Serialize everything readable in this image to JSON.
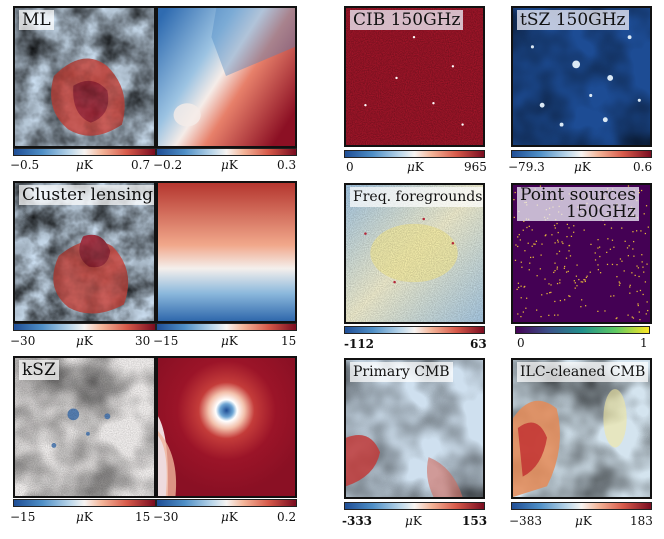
{
  "panels": [
    {
      "id": "ml",
      "title": "ML"
    },
    {
      "id": "ml-dipole",
      "title": ""
    },
    {
      "id": "cib",
      "title": "CIB 150GHz"
    },
    {
      "id": "tsz",
      "title": "tSZ 150GHz"
    },
    {
      "id": "cluster-lensing",
      "title": "Cluster lensing"
    },
    {
      "id": "lensing-dipole",
      "title": ""
    },
    {
      "id": "freq-foregrounds",
      "title": "Freq. foregrounds"
    },
    {
      "id": "point-sources",
      "title_line1": "Point sources",
      "title_line2": "150GHz"
    },
    {
      "id": "ksz",
      "title": "kSZ"
    },
    {
      "id": "ksz-ring",
      "title": ""
    },
    {
      "id": "primary-cmb",
      "title": "Primary CMB"
    },
    {
      "id": "ilc-cmb",
      "title": "ILC-cleaned CMB"
    }
  ],
  "colorbars": [
    {
      "id": "ml",
      "min": "−0.5",
      "max": "0.7",
      "unit_mu": "μ",
      "unit": "K",
      "cmap": "RdBu_r"
    },
    {
      "id": "ml-dipole",
      "min": "−0.2",
      "max": "0.3",
      "unit_mu": "μ",
      "unit": "K",
      "cmap": "RdBu_r"
    },
    {
      "id": "cib",
      "min": "0",
      "max": "965",
      "unit_mu": "μ",
      "unit": "K",
      "cmap": "RdBu_r"
    },
    {
      "id": "tsz",
      "min": "−79.3",
      "max": "0.6",
      "unit_mu": "μ",
      "unit": "K",
      "cmap": "RdBu_r"
    },
    {
      "id": "lensing",
      "min": "−30",
      "max": "30",
      "unit_mu": "μ",
      "unit": "K",
      "cmap": "RdBu_r"
    },
    {
      "id": "lensing-dipole",
      "min": "−15",
      "max": "15",
      "unit_mu": "μ",
      "unit": "K",
      "cmap": "RdBu_r"
    },
    {
      "id": "freq",
      "min": "-112",
      "max": "63",
      "unit_mu": "",
      "unit": "",
      "cmap": "RdBu_r"
    },
    {
      "id": "ps",
      "min": "0",
      "max": "1",
      "unit_mu": "",
      "unit": "",
      "cmap": "viridis"
    },
    {
      "id": "ksz",
      "min": "−15",
      "max": "15",
      "unit_mu": "μ",
      "unit": "K",
      "cmap": "RdBu_r"
    },
    {
      "id": "ksz-ring",
      "min": "−30",
      "max": "0.2",
      "unit_mu": "μ",
      "unit": "K",
      "cmap": "RdBu_r"
    },
    {
      "id": "primary",
      "min": "-333",
      "max": "153",
      "unit_mu": "μ",
      "unit": "K",
      "cmap": "RdBu_r"
    },
    {
      "id": "ilc",
      "min": "−383",
      "max": "183",
      "unit_mu": "μ",
      "unit": "K",
      "cmap": "RdBu_r"
    }
  ],
  "colors": {
    "red": "#a1172b",
    "blue": "#2f6bb0",
    "white": "#f7f4f2",
    "viridis_bg": "#440154",
    "point": "#e6b93a"
  }
}
